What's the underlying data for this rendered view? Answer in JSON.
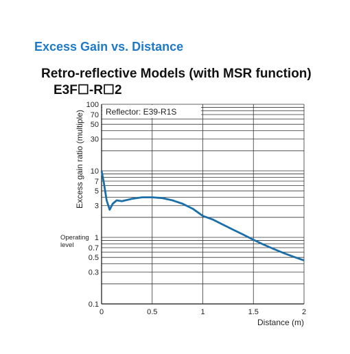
{
  "chart_data": {
    "type": "line",
    "section_title": "Excess Gain vs. Distance",
    "title": "Retro-reflective Models (with MSR function)",
    "subtitle": "E3F☐-R☐2",
    "reflector_label": "Reflector: E39-R1S",
    "operating_level_label": [
      "Operating",
      "level"
    ],
    "ylabel": "Excess gain ratio (multiple)",
    "xlabel": "Distance (m)",
    "x": [
      0,
      0.02,
      0.05,
      0.08,
      0.11,
      0.15,
      0.2,
      0.3,
      0.4,
      0.5,
      0.6,
      0.7,
      0.8,
      0.9,
      1.0,
      1.1,
      1.2,
      1.3,
      1.4,
      1.5,
      1.6,
      1.7,
      1.8,
      1.9,
      2.0
    ],
    "series": [
      {
        "name": "E3F-R2",
        "color": "#1a6fa8",
        "values": [
          10,
          7,
          3.6,
          2.6,
          3.2,
          3.6,
          3.5,
          3.8,
          4.0,
          4.0,
          3.9,
          3.6,
          3.2,
          2.7,
          2.1,
          1.85,
          1.55,
          1.3,
          1.1,
          0.92,
          0.78,
          0.67,
          0.58,
          0.51,
          0.45
        ]
      }
    ],
    "xlim": [
      0,
      2
    ],
    "xticks": [
      0,
      0.5,
      1,
      1.5,
      2
    ],
    "ylim": [
      0.1,
      100
    ],
    "ylog": true,
    "yticks": [
      0.1,
      0.3,
      0.5,
      0.7,
      1,
      3,
      5,
      7,
      10,
      30,
      50,
      70,
      100
    ],
    "yminor": [
      0.2,
      0.4,
      0.6,
      0.8,
      0.9,
      2,
      4,
      6,
      8,
      9,
      20,
      40,
      60,
      80,
      90
    ],
    "grid": true
  }
}
